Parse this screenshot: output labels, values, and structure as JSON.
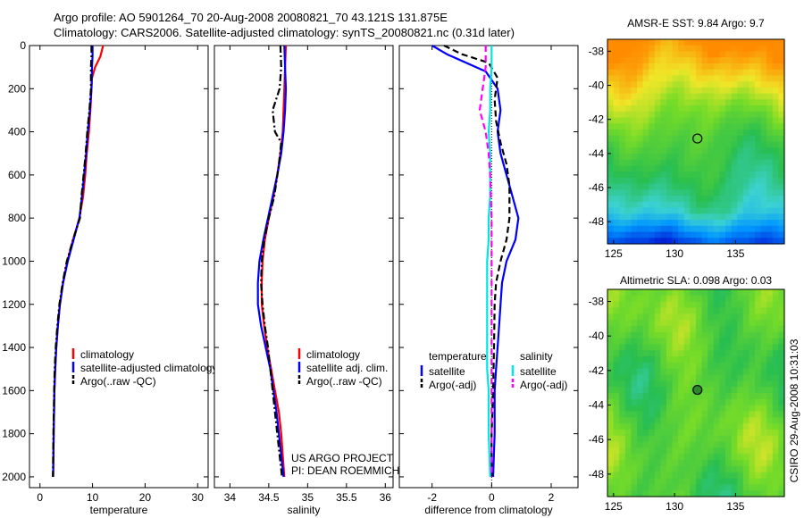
{
  "title_line1": "Argo profile: AO 5901264_70 20-Aug-2008 20080821_70 43.121S 131.875E",
  "title_line2": "Climatology: CARS2006. Satellite-adjusted climatology: synTS_20080821.nc (0.31d later)",
  "chart_data": [
    {
      "type": "line",
      "xlabel": "temperature",
      "ylabel": "",
      "xlim": [
        -2,
        32
      ],
      "ylim": [
        2050,
        0
      ],
      "y_reversed": true,
      "xticks": [
        0,
        10,
        20,
        30
      ],
      "yticks": [
        0,
        200,
        400,
        600,
        800,
        1000,
        1200,
        1400,
        1600,
        1800,
        2000
      ],
      "legend_position": "lower-right",
      "series": [
        {
          "name": "climatology",
          "color": "#ff0000",
          "dash": "solid",
          "points": [
            [
              12.0,
              0
            ],
            [
              11.5,
              50
            ],
            [
              10.5,
              100
            ],
            [
              9.9,
              150
            ],
            [
              9.8,
              200
            ],
            [
              9.6,
              300
            ],
            [
              9.3,
              400
            ],
            [
              8.9,
              500
            ],
            [
              8.6,
              600
            ],
            [
              8.2,
              700
            ],
            [
              7.5,
              800
            ],
            [
              6.3,
              900
            ],
            [
              5.2,
              1000
            ],
            [
              4.4,
              1100
            ],
            [
              3.8,
              1200
            ],
            [
              3.4,
              1300
            ],
            [
              3.1,
              1400
            ],
            [
              2.9,
              1500
            ],
            [
              2.75,
              1600
            ],
            [
              2.6,
              1800
            ],
            [
              2.5,
              2000
            ]
          ]
        },
        {
          "name": "satellite-adjusted climatology",
          "color": "#0000ff",
          "dash": "solid",
          "points": [
            [
              10.0,
              0
            ],
            [
              10.0,
              50
            ],
            [
              9.9,
              100
            ],
            [
              9.8,
              200
            ],
            [
              9.5,
              300
            ],
            [
              9.1,
              400
            ],
            [
              8.8,
              500
            ],
            [
              8.4,
              600
            ],
            [
              8.0,
              700
            ],
            [
              7.5,
              800
            ],
            [
              6.4,
              900
            ],
            [
              5.3,
              1000
            ],
            [
              4.4,
              1100
            ],
            [
              3.8,
              1200
            ],
            [
              3.4,
              1300
            ],
            [
              3.1,
              1400
            ],
            [
              2.9,
              1500
            ],
            [
              2.75,
              1600
            ],
            [
              2.6,
              1800
            ],
            [
              2.5,
              2000
            ]
          ]
        },
        {
          "name": "Argo(..raw -QC)",
          "color": "#000000",
          "dash": "dashdot",
          "points": [
            [
              9.8,
              0
            ],
            [
              9.8,
              50
            ],
            [
              9.7,
              100
            ],
            [
              9.7,
              200
            ],
            [
              9.4,
              300
            ],
            [
              9.0,
              400
            ],
            [
              8.7,
              500
            ],
            [
              8.3,
              600
            ],
            [
              7.9,
              700
            ],
            [
              7.6,
              800
            ],
            [
              6.3,
              900
            ],
            [
              5.1,
              1000
            ],
            [
              4.3,
              1100
            ],
            [
              3.7,
              1200
            ],
            [
              3.3,
              1300
            ],
            [
              3.0,
              1400
            ],
            [
              2.8,
              1500
            ],
            [
              2.7,
              1600
            ],
            [
              2.55,
              1800
            ],
            [
              2.45,
              2000
            ]
          ]
        }
      ]
    },
    {
      "type": "line",
      "xlabel": "salinity",
      "ylabel": "",
      "xlim": [
        33.8,
        36.1
      ],
      "ylim": [
        2050,
        0
      ],
      "y_reversed": true,
      "xticks": [
        34,
        34.5,
        35,
        35.5,
        36
      ],
      "yticks": [
        0,
        200,
        400,
        600,
        800,
        1000,
        1200,
        1400,
        1600,
        1800,
        2000
      ],
      "legend_position": "lower-right",
      "series": [
        {
          "name": "climatology",
          "color": "#ff0000",
          "dash": "solid",
          "points": [
            [
              34.72,
              0
            ],
            [
              34.71,
              100
            ],
            [
              34.7,
              200
            ],
            [
              34.69,
              300
            ],
            [
              34.68,
              400
            ],
            [
              34.65,
              500
            ],
            [
              34.61,
              600
            ],
            [
              34.56,
              700
            ],
            [
              34.5,
              800
            ],
            [
              34.45,
              900
            ],
            [
              34.42,
              1000
            ],
            [
              34.41,
              1100
            ],
            [
              34.41,
              1200
            ],
            [
              34.44,
              1300
            ],
            [
              34.48,
              1400
            ],
            [
              34.53,
              1500
            ],
            [
              34.58,
              1600
            ],
            [
              34.63,
              1700
            ],
            [
              34.66,
              1800
            ],
            [
              34.68,
              1900
            ],
            [
              34.7,
              2000
            ]
          ]
        },
        {
          "name": "satellite adj. clim.",
          "color": "#0000ff",
          "dash": "solid",
          "points": [
            [
              34.7,
              0
            ],
            [
              34.71,
              100
            ],
            [
              34.72,
              200
            ],
            [
              34.71,
              300
            ],
            [
              34.69,
              400
            ],
            [
              34.66,
              500
            ],
            [
              34.61,
              600
            ],
            [
              34.55,
              700
            ],
            [
              34.49,
              800
            ],
            [
              34.43,
              900
            ],
            [
              34.38,
              1000
            ],
            [
              34.36,
              1100
            ],
            [
              34.36,
              1200
            ],
            [
              34.4,
              1300
            ],
            [
              34.46,
              1400
            ],
            [
              34.52,
              1500
            ],
            [
              34.56,
              1600
            ],
            [
              34.6,
              1700
            ],
            [
              34.63,
              1800
            ],
            [
              34.66,
              1900
            ],
            [
              34.69,
              2000
            ]
          ]
        },
        {
          "name": "Argo(..raw -QC)",
          "color": "#000000",
          "dash": "dashdot",
          "points": [
            [
              34.65,
              0
            ],
            [
              34.66,
              100
            ],
            [
              34.64,
              200
            ],
            [
              34.55,
              300
            ],
            [
              34.58,
              400
            ],
            [
              34.66,
              450
            ],
            [
              34.63,
              550
            ],
            [
              34.57,
              700
            ],
            [
              34.5,
              800
            ],
            [
              34.44,
              900
            ],
            [
              34.41,
              1000
            ],
            [
              34.4,
              1100
            ],
            [
              34.42,
              1200
            ],
            [
              34.45,
              1300
            ],
            [
              34.49,
              1400
            ],
            [
              34.52,
              1500
            ],
            [
              34.55,
              1600
            ],
            [
              34.58,
              1700
            ],
            [
              34.61,
              1800
            ],
            [
              34.64,
              1900
            ],
            [
              34.67,
              2000
            ]
          ]
        }
      ]
    },
    {
      "type": "line",
      "xlabel": "difference from climatology",
      "ylabel": "",
      "xlim": [
        -3.1,
        2.9
      ],
      "ylim": [
        2050,
        0
      ],
      "y_reversed": true,
      "xticks": [
        -2,
        0,
        2
      ],
      "yticks": [
        0,
        200,
        400,
        600,
        800,
        1000,
        1200,
        1400,
        1600,
        1800,
        2000
      ],
      "legend_position": "lower-left",
      "legend_groups": [
        "temperature",
        "salinity"
      ],
      "series": [
        {
          "name": "satellite",
          "group": "temperature",
          "color": "#0000ff",
          "dash": "solid",
          "points": [
            [
              -2.0,
              0
            ],
            [
              -1.5,
              40
            ],
            [
              -0.2,
              120
            ],
            [
              0.2,
              200
            ],
            [
              0.3,
              300
            ],
            [
              0.2,
              400
            ],
            [
              0.3,
              500
            ],
            [
              0.5,
              600
            ],
            [
              0.7,
              700
            ],
            [
              0.9,
              800
            ],
            [
              0.8,
              900
            ],
            [
              0.5,
              1000
            ],
            [
              0.35,
              1100
            ],
            [
              0.3,
              1200
            ],
            [
              0.25,
              1300
            ],
            [
              0.2,
              1400
            ],
            [
              0.15,
              1500
            ],
            [
              0.1,
              1600
            ],
            [
              0.1,
              1800
            ],
            [
              0.05,
              2000
            ]
          ]
        },
        {
          "name": "Argo(-adj)",
          "group": "temperature",
          "color": "#000000",
          "dash": "dashed",
          "points": [
            [
              -1.6,
              0
            ],
            [
              -1.0,
              40
            ],
            [
              -0.1,
              80
            ],
            [
              0.2,
              150
            ],
            [
              0.1,
              250
            ],
            [
              0.15,
              350
            ],
            [
              0.3,
              450
            ],
            [
              0.5,
              550
            ],
            [
              0.6,
              650
            ],
            [
              0.6,
              800
            ],
            [
              0.5,
              900
            ],
            [
              0.3,
              1000
            ],
            [
              0.15,
              1100
            ],
            [
              0.1,
              1200
            ],
            [
              0.08,
              1400
            ],
            [
              0.05,
              1600
            ],
            [
              0.0,
              1800
            ],
            [
              0.0,
              2000
            ]
          ]
        },
        {
          "name": "satellite",
          "group": "salinity",
          "color": "#00e5e5",
          "dash": "solid",
          "points": [
            [
              0.0,
              0
            ],
            [
              0.0,
              100
            ],
            [
              -0.05,
              200
            ],
            [
              -0.05,
              300
            ],
            [
              -0.1,
              400
            ],
            [
              -0.05,
              500
            ],
            [
              -0.05,
              600
            ],
            [
              -0.05,
              700
            ],
            [
              -0.1,
              800
            ],
            [
              -0.1,
              900
            ],
            [
              -0.15,
              1000
            ],
            [
              -0.15,
              1100
            ],
            [
              -0.15,
              1200
            ],
            [
              -0.15,
              1300
            ],
            [
              -0.15,
              1400
            ],
            [
              -0.15,
              1500
            ],
            [
              -0.1,
              1600
            ],
            [
              -0.1,
              1800
            ],
            [
              -0.05,
              2000
            ]
          ]
        },
        {
          "name": "Argo(-adj)",
          "group": "salinity",
          "color": "#ff00ff",
          "dash": "dashed",
          "points": [
            [
              -0.2,
              0
            ],
            [
              -0.2,
              100
            ],
            [
              -0.3,
              200
            ],
            [
              -0.4,
              300
            ],
            [
              -0.2,
              400
            ],
            [
              -0.1,
              500
            ],
            [
              -0.05,
              600
            ],
            [
              0.0,
              800
            ],
            [
              0.0,
              1000
            ],
            [
              0.0,
              1200
            ],
            [
              0.0,
              1500
            ],
            [
              0.0,
              1800
            ],
            [
              0.0,
              2000
            ]
          ]
        }
      ]
    },
    {
      "type": "heatmap",
      "title": "AMSR-E SST: 9.84 Argo: 9.7",
      "xlim": [
        124.5,
        139
      ],
      "ylim": [
        -49.3,
        -37.3
      ],
      "xticks": [
        125,
        130,
        135
      ],
      "yticks": [
        -38,
        -40,
        -42,
        -44,
        -46,
        -48
      ],
      "marker": {
        "lon": 131.875,
        "lat": -43.121
      }
    },
    {
      "type": "heatmap",
      "title": "Altimetric SLA: 0.098 Argo: 0.03",
      "xlim": [
        124.5,
        139
      ],
      "ylim": [
        -49.3,
        -37.3
      ],
      "xticks": [
        125,
        130,
        135
      ],
      "yticks": [
        -38,
        -40,
        -42,
        -44,
        -46,
        -48
      ],
      "marker": {
        "lon": 131.875,
        "lat": -43.121
      }
    }
  ],
  "annotations": {
    "project_line1": "US ARGO PROJECT",
    "project_line2": "PI: DEAN ROEMMICH",
    "stamp": "CSIRO 29-Aug-2008 10:31:03"
  }
}
